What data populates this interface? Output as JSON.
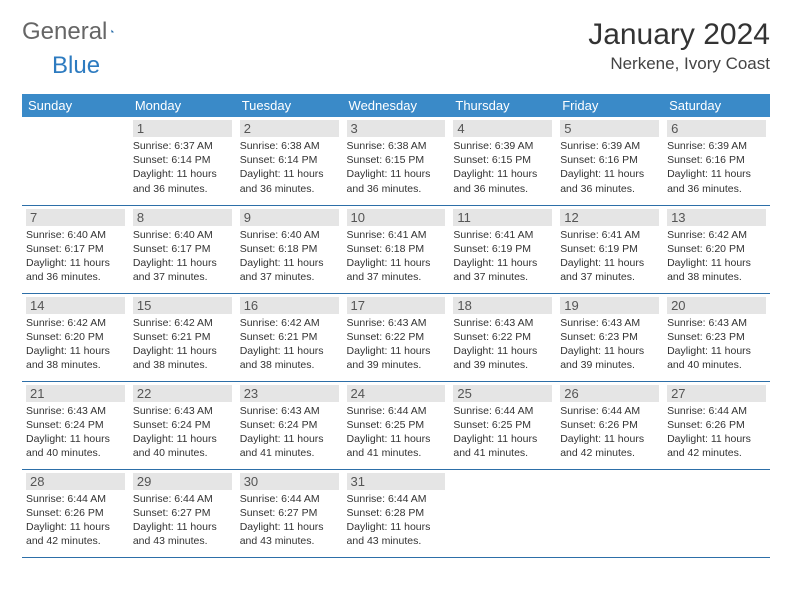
{
  "brand": {
    "word1": "General",
    "word2": "Blue"
  },
  "header": {
    "title": "January 2024",
    "location": "Nerkene, Ivory Coast"
  },
  "colors": {
    "header_bg": "#3a8ac8",
    "header_text": "#ffffff",
    "row_border": "#2d6fa8",
    "daynum_bg": "#e5e5e5",
    "text": "#333333",
    "brand_blue": "#2d7bc0"
  },
  "weekdays": [
    "Sunday",
    "Monday",
    "Tuesday",
    "Wednesday",
    "Thursday",
    "Friday",
    "Saturday"
  ],
  "weeks": [
    [
      {
        "day": "",
        "sunrise": "",
        "sunset": "",
        "daylight": ""
      },
      {
        "day": "1",
        "sunrise": "Sunrise: 6:37 AM",
        "sunset": "Sunset: 6:14 PM",
        "daylight": "Daylight: 11 hours and 36 minutes."
      },
      {
        "day": "2",
        "sunrise": "Sunrise: 6:38 AM",
        "sunset": "Sunset: 6:14 PM",
        "daylight": "Daylight: 11 hours and 36 minutes."
      },
      {
        "day": "3",
        "sunrise": "Sunrise: 6:38 AM",
        "sunset": "Sunset: 6:15 PM",
        "daylight": "Daylight: 11 hours and 36 minutes."
      },
      {
        "day": "4",
        "sunrise": "Sunrise: 6:39 AM",
        "sunset": "Sunset: 6:15 PM",
        "daylight": "Daylight: 11 hours and 36 minutes."
      },
      {
        "day": "5",
        "sunrise": "Sunrise: 6:39 AM",
        "sunset": "Sunset: 6:16 PM",
        "daylight": "Daylight: 11 hours and 36 minutes."
      },
      {
        "day": "6",
        "sunrise": "Sunrise: 6:39 AM",
        "sunset": "Sunset: 6:16 PM",
        "daylight": "Daylight: 11 hours and 36 minutes."
      }
    ],
    [
      {
        "day": "7",
        "sunrise": "Sunrise: 6:40 AM",
        "sunset": "Sunset: 6:17 PM",
        "daylight": "Daylight: 11 hours and 36 minutes."
      },
      {
        "day": "8",
        "sunrise": "Sunrise: 6:40 AM",
        "sunset": "Sunset: 6:17 PM",
        "daylight": "Daylight: 11 hours and 37 minutes."
      },
      {
        "day": "9",
        "sunrise": "Sunrise: 6:40 AM",
        "sunset": "Sunset: 6:18 PM",
        "daylight": "Daylight: 11 hours and 37 minutes."
      },
      {
        "day": "10",
        "sunrise": "Sunrise: 6:41 AM",
        "sunset": "Sunset: 6:18 PM",
        "daylight": "Daylight: 11 hours and 37 minutes."
      },
      {
        "day": "11",
        "sunrise": "Sunrise: 6:41 AM",
        "sunset": "Sunset: 6:19 PM",
        "daylight": "Daylight: 11 hours and 37 minutes."
      },
      {
        "day": "12",
        "sunrise": "Sunrise: 6:41 AM",
        "sunset": "Sunset: 6:19 PM",
        "daylight": "Daylight: 11 hours and 37 minutes."
      },
      {
        "day": "13",
        "sunrise": "Sunrise: 6:42 AM",
        "sunset": "Sunset: 6:20 PM",
        "daylight": "Daylight: 11 hours and 38 minutes."
      }
    ],
    [
      {
        "day": "14",
        "sunrise": "Sunrise: 6:42 AM",
        "sunset": "Sunset: 6:20 PM",
        "daylight": "Daylight: 11 hours and 38 minutes."
      },
      {
        "day": "15",
        "sunrise": "Sunrise: 6:42 AM",
        "sunset": "Sunset: 6:21 PM",
        "daylight": "Daylight: 11 hours and 38 minutes."
      },
      {
        "day": "16",
        "sunrise": "Sunrise: 6:42 AM",
        "sunset": "Sunset: 6:21 PM",
        "daylight": "Daylight: 11 hours and 38 minutes."
      },
      {
        "day": "17",
        "sunrise": "Sunrise: 6:43 AM",
        "sunset": "Sunset: 6:22 PM",
        "daylight": "Daylight: 11 hours and 39 minutes."
      },
      {
        "day": "18",
        "sunrise": "Sunrise: 6:43 AM",
        "sunset": "Sunset: 6:22 PM",
        "daylight": "Daylight: 11 hours and 39 minutes."
      },
      {
        "day": "19",
        "sunrise": "Sunrise: 6:43 AM",
        "sunset": "Sunset: 6:23 PM",
        "daylight": "Daylight: 11 hours and 39 minutes."
      },
      {
        "day": "20",
        "sunrise": "Sunrise: 6:43 AM",
        "sunset": "Sunset: 6:23 PM",
        "daylight": "Daylight: 11 hours and 40 minutes."
      }
    ],
    [
      {
        "day": "21",
        "sunrise": "Sunrise: 6:43 AM",
        "sunset": "Sunset: 6:24 PM",
        "daylight": "Daylight: 11 hours and 40 minutes."
      },
      {
        "day": "22",
        "sunrise": "Sunrise: 6:43 AM",
        "sunset": "Sunset: 6:24 PM",
        "daylight": "Daylight: 11 hours and 40 minutes."
      },
      {
        "day": "23",
        "sunrise": "Sunrise: 6:43 AM",
        "sunset": "Sunset: 6:24 PM",
        "daylight": "Daylight: 11 hours and 41 minutes."
      },
      {
        "day": "24",
        "sunrise": "Sunrise: 6:44 AM",
        "sunset": "Sunset: 6:25 PM",
        "daylight": "Daylight: 11 hours and 41 minutes."
      },
      {
        "day": "25",
        "sunrise": "Sunrise: 6:44 AM",
        "sunset": "Sunset: 6:25 PM",
        "daylight": "Daylight: 11 hours and 41 minutes."
      },
      {
        "day": "26",
        "sunrise": "Sunrise: 6:44 AM",
        "sunset": "Sunset: 6:26 PM",
        "daylight": "Daylight: 11 hours and 42 minutes."
      },
      {
        "day": "27",
        "sunrise": "Sunrise: 6:44 AM",
        "sunset": "Sunset: 6:26 PM",
        "daylight": "Daylight: 11 hours and 42 minutes."
      }
    ],
    [
      {
        "day": "28",
        "sunrise": "Sunrise: 6:44 AM",
        "sunset": "Sunset: 6:26 PM",
        "daylight": "Daylight: 11 hours and 42 minutes."
      },
      {
        "day": "29",
        "sunrise": "Sunrise: 6:44 AM",
        "sunset": "Sunset: 6:27 PM",
        "daylight": "Daylight: 11 hours and 43 minutes."
      },
      {
        "day": "30",
        "sunrise": "Sunrise: 6:44 AM",
        "sunset": "Sunset: 6:27 PM",
        "daylight": "Daylight: 11 hours and 43 minutes."
      },
      {
        "day": "31",
        "sunrise": "Sunrise: 6:44 AM",
        "sunset": "Sunset: 6:28 PM",
        "daylight": "Daylight: 11 hours and 43 minutes."
      },
      {
        "day": "",
        "sunrise": "",
        "sunset": "",
        "daylight": ""
      },
      {
        "day": "",
        "sunrise": "",
        "sunset": "",
        "daylight": ""
      },
      {
        "day": "",
        "sunrise": "",
        "sunset": "",
        "daylight": ""
      }
    ]
  ]
}
